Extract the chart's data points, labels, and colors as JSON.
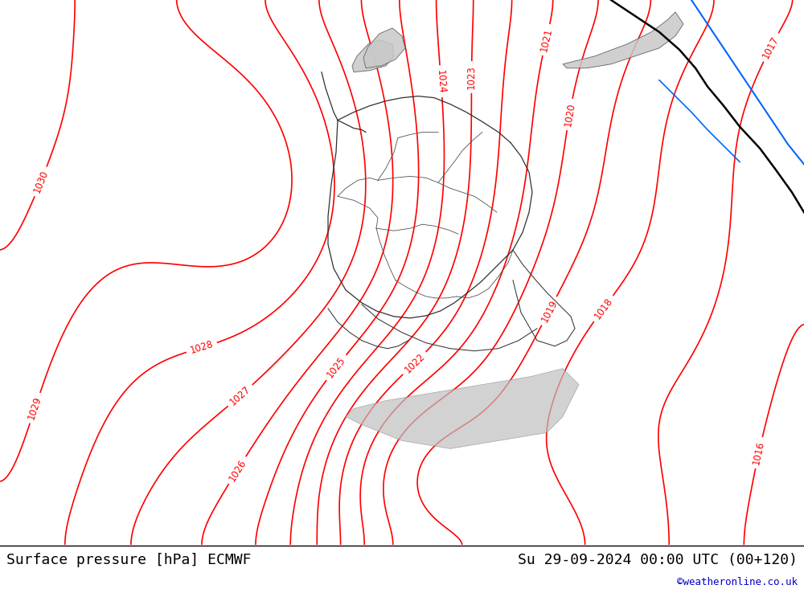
{
  "title_left": "Surface pressure [hPa] ECMWF",
  "title_right": "Su 29-09-2024 00:00 UTC (00+120)",
  "watermark": "©weatheronline.co.uk",
  "bg_color": "#c8e6a0",
  "border_color": "#000000",
  "map_bg": "#d8d8d8",
  "contour_color": "#ff0000",
  "contour_linewidth": 1.2,
  "label_color": "#ff0000",
  "label_fontsize": 8.5,
  "title_fontsize": 13,
  "title_color": "#000000",
  "watermark_color": "#0000cc",
  "watermark_fontsize": 9,
  "bottom_bar_color": "#e8f8b0",
  "figsize": [
    10.0,
    7.33
  ],
  "dpi": 100
}
